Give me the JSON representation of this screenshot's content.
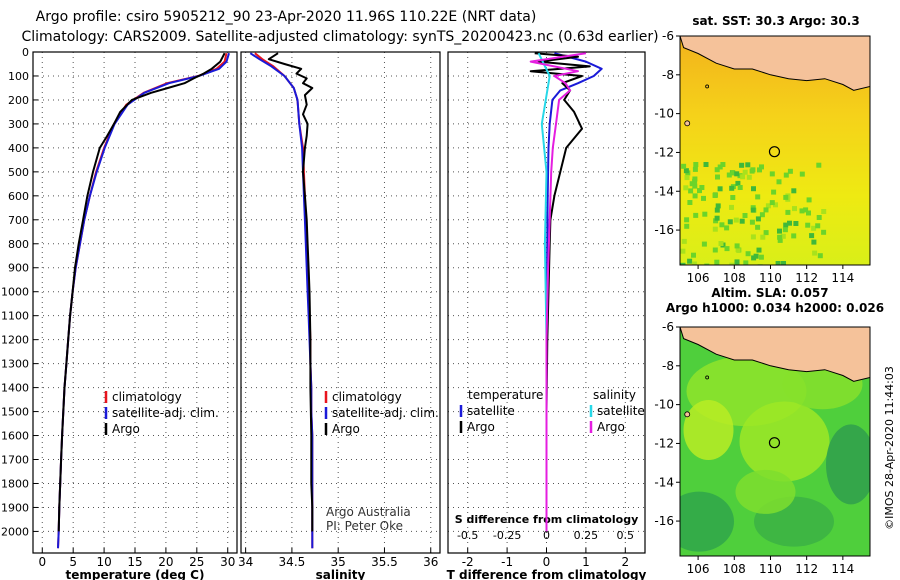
{
  "titles": {
    "line1": "Argo profile: csiro 5905212_90 23-Apr-2020 11.96S 110.22E (NRT data)",
    "line2": "Climatology: CARS2009. Satellite-adjusted climatology: synTS_20200423.nc (0.63d earlier)"
  },
  "colors": {
    "climatology": "#e8141e",
    "satellite": "#1a1ad8",
    "argo": "#000000",
    "sat_salinity": "#27d8e8",
    "argo_salinity": "#e51ee0"
  },
  "chart_data": [
    {
      "type": "line",
      "id": "temperature",
      "xlabel": "temperature (deg C)",
      "xlim": [
        -1.5,
        31.5
      ],
      "ylim": [
        2090,
        0
      ],
      "xticks": [
        0,
        5,
        10,
        15,
        20,
        25,
        30
      ],
      "xticklabels": [
        "0",
        "5",
        "10",
        "15",
        "20",
        "25",
        "30"
      ],
      "yticks": [
        0,
        100,
        200,
        300,
        400,
        500,
        600,
        700,
        800,
        900,
        1000,
        1100,
        1200,
        1300,
        1400,
        1500,
        1600,
        1700,
        1800,
        1900,
        2000
      ],
      "yticklabels": [
        "0",
        "100",
        "200",
        "300",
        "400",
        "500",
        "600",
        "700",
        "800",
        "900",
        "1000",
        "1100",
        "1200",
        "1300",
        "1400",
        "1500",
        "1600",
        "1700",
        "1800",
        "1900",
        "2000"
      ],
      "legend": [
        "climatology",
        "satellite-adj. clim.",
        "Argo"
      ],
      "series": [
        {
          "name": "climatology",
          "color": "#e8141e",
          "x": [
            29.8,
            29.5,
            28.2,
            25.2,
            20.2,
            16.4,
            13.6,
            11.6,
            10.0,
            8.7,
            7.7,
            6.8,
            6.1,
            5.4,
            4.9,
            4.5,
            4.2,
            3.9,
            3.6,
            3.4,
            3.2,
            3.05,
            2.9,
            2.75,
            2.65,
            2.55
          ],
          "y": [
            5,
            40,
            70,
            100,
            130,
            170,
            220,
            300,
            400,
            500,
            600,
            700,
            800,
            900,
            1000,
            1100,
            1200,
            1300,
            1400,
            1500,
            1600,
            1700,
            1800,
            1900,
            2000,
            2070
          ]
        },
        {
          "name": "satellite-adj. clim.",
          "color": "#1a1ad8",
          "x": [
            30.2,
            29.8,
            28.6,
            25.3,
            20.5,
            16.5,
            13.8,
            11.7,
            10.1,
            8.8,
            7.7,
            6.8,
            6.1,
            5.4,
            4.9,
            4.5,
            4.2,
            3.9,
            3.6,
            3.4,
            3.2,
            3.05,
            2.9,
            2.75,
            2.65,
            2.55
          ],
          "y": [
            5,
            40,
            70,
            100,
            130,
            170,
            220,
            300,
            400,
            500,
            600,
            700,
            800,
            900,
            1000,
            1100,
            1200,
            1300,
            1400,
            1500,
            1600,
            1700,
            1800,
            1900,
            2000,
            2070
          ]
        },
        {
          "name": "Argo",
          "color": "#000000",
          "x": [
            29.5,
            28.8,
            27.4,
            26.1,
            24.5,
            23.0,
            20.3,
            17.6,
            14.5,
            12.6,
            11.6,
            10.5,
            9.3,
            8.2,
            7.3,
            6.6,
            5.9,
            5.3,
            4.9,
            4.5,
            4.2,
            3.9,
            3.6,
            3.4,
            3.2,
            3.05,
            2.9,
            2.75,
            2.65
          ],
          "y": [
            5,
            40,
            70,
            90,
            110,
            130,
            150,
            170,
            200,
            250,
            300,
            350,
            400,
            500,
            600,
            700,
            800,
            900,
            1000,
            1100,
            1200,
            1300,
            1400,
            1500,
            1600,
            1700,
            1800,
            1900,
            2000
          ]
        }
      ]
    },
    {
      "type": "line",
      "id": "salinity",
      "xlabel": "salinity",
      "xlim": [
        33.95,
        36.1
      ],
      "ylim": [
        2090,
        0
      ],
      "xticks": [
        34,
        34.5,
        35,
        35.5,
        36
      ],
      "xticklabels": [
        "34",
        "34.5",
        "35",
        "35.5",
        "36"
      ],
      "legend": [
        "climatology",
        "satellite-adj. clim.",
        "Argo"
      ],
      "annotation": [
        "Argo Australia",
        "PI: Peter Oke"
      ],
      "series": [
        {
          "name": "climatology",
          "color": "#e8141e",
          "x": [
            34.1,
            34.18,
            34.3,
            34.42,
            34.52,
            34.56,
            34.58,
            34.62,
            34.63,
            34.64,
            34.65,
            34.66,
            34.67,
            34.68,
            34.69,
            34.7,
            34.7,
            34.71,
            34.71,
            34.72,
            34.72,
            34.72,
            34.72
          ],
          "y": [
            5,
            30,
            60,
            100,
            150,
            200,
            300,
            400,
            500,
            600,
            700,
            800,
            900,
            1000,
            1100,
            1200,
            1300,
            1400,
            1500,
            1600,
            1800,
            1900,
            2070
          ]
        },
        {
          "name": "satellite-adj. clim.",
          "color": "#1a1ad8",
          "x": [
            34.05,
            34.15,
            34.28,
            34.42,
            34.52,
            34.56,
            34.58,
            34.61,
            34.62,
            34.63,
            34.64,
            34.65,
            34.66,
            34.67,
            34.68,
            34.69,
            34.7,
            34.71,
            34.71,
            34.72,
            34.72,
            34.72,
            34.72
          ],
          "y": [
            5,
            30,
            60,
            100,
            150,
            200,
            300,
            400,
            500,
            600,
            700,
            800,
            900,
            1000,
            1100,
            1200,
            1300,
            1400,
            1500,
            1600,
            1800,
            1900,
            2070
          ]
        },
        {
          "name": "Argo",
          "color": "#000000",
          "x": [
            34.35,
            34.25,
            34.42,
            34.6,
            34.55,
            34.66,
            34.62,
            34.72,
            34.64,
            34.66,
            34.62,
            34.67,
            34.66,
            34.64,
            34.62,
            34.64,
            34.66,
            34.67,
            34.68,
            34.69,
            34.7,
            34.7,
            34.71,
            34.71,
            34.72,
            34.72
          ],
          "y": [
            5,
            30,
            50,
            70,
            90,
            110,
            130,
            150,
            180,
            220,
            260,
            300,
            350,
            400,
            500,
            600,
            700,
            800,
            900,
            1000,
            1200,
            1400,
            1600,
            1800,
            1900,
            2000
          ]
        }
      ]
    },
    {
      "type": "line",
      "id": "difference",
      "xlabel": "T difference from climatology",
      "xlabel_top": "S difference from climatology",
      "xlim": [
        -2.5,
        2.5
      ],
      "ylim": [
        2090,
        0
      ],
      "xticks": [
        -2,
        -1,
        0,
        1,
        2
      ],
      "xticklabels": [
        "-2",
        "-1",
        "0",
        "1",
        "2"
      ],
      "xticks_top": [
        -0.5,
        -0.25,
        0,
        0.25,
        0.5
      ],
      "xticklabels_top": [
        "-0.5",
        "-0.25",
        "0",
        "0.25",
        "0.5"
      ],
      "legend": {
        "temperature_header": "temperature",
        "salinity_header": "salinity",
        "items": [
          "satellite",
          "Argo",
          "satellite",
          "Argo"
        ]
      },
      "series": [
        {
          "name": "T satellite",
          "color": "#1a1ad8",
          "x": [
            0.2,
            1.0,
            1.4,
            1.2,
            0.8,
            0.35,
            0.15,
            0.08,
            0.05,
            0.03,
            0.02,
            0.01,
            0,
            0,
            0
          ],
          "y": [
            5,
            40,
            70,
            100,
            130,
            160,
            200,
            300,
            400,
            600,
            800,
            1000,
            1400,
            1800,
            2000
          ]
        },
        {
          "name": "T Argo",
          "color": "#000000",
          "x": [
            -0.3,
            0.8,
            -0.2,
            1.1,
            -0.4,
            0.9,
            0.4,
            0.6,
            0.45,
            0.7,
            0.9,
            0.5,
            0.35,
            0.2,
            0.1,
            0.08,
            0.05,
            0.02,
            0,
            0,
            0
          ],
          "y": [
            5,
            20,
            40,
            60,
            80,
            100,
            130,
            160,
            200,
            250,
            320,
            400,
            500,
            600,
            700,
            800,
            1000,
            1200,
            1500,
            1800,
            2000
          ]
        },
        {
          "name": "S satellite",
          "color": "#27d8e8",
          "x": [
            -0.05,
            0.02,
            -0.03,
            0.0,
            -0.01,
            0.0,
            0.0
          ],
          "y": [
            5,
            100,
            300,
            500,
            800,
            1200,
            1600
          ]
        },
        {
          "name": "S Argo",
          "color": "#e51ee0",
          "x": [
            0.25,
            -0.1,
            0.2,
            0.05,
            0.12,
            0.15,
            0.08,
            0.06,
            0.04,
            0.03,
            0.02,
            0.01,
            0.0,
            0.0,
            0.0
          ],
          "y": [
            5,
            40,
            80,
            100,
            130,
            160,
            200,
            300,
            400,
            500,
            700,
            900,
            1200,
            1600,
            2000
          ]
        }
      ]
    }
  ],
  "maps": [
    {
      "id": "sst-map",
      "title": "sat. SST: 30.3 Argo: 30.3",
      "xticks": [
        106,
        108,
        110,
        112,
        114
      ],
      "xticklabels": [
        "106",
        "108",
        "110",
        "112",
        "114"
      ],
      "yticks": [
        -6,
        -8,
        -10,
        -12,
        -14,
        -16
      ],
      "yticklabels": [
        "-6",
        "-8",
        "-10",
        "-12",
        "-14",
        "-16"
      ],
      "profile_lon": 110.22,
      "profile_lat": -11.96
    },
    {
      "id": "sla-map",
      "title": "Altim. SLA: 0.057",
      "subtitle": "Argo h1000: 0.034 h2000: 0.026",
      "xticks": [
        106,
        108,
        110,
        112,
        114
      ],
      "xticklabels": [
        "106",
        "108",
        "110",
        "112",
        "114"
      ],
      "yticks": [
        -6,
        -8,
        -10,
        -12,
        -14,
        -16
      ],
      "yticklabels": [
        "-6",
        "-8",
        "-10",
        "-12",
        "-14",
        "-16"
      ],
      "profile_lon": 110.22,
      "profile_lat": -11.96
    }
  ],
  "credit": "©IMOS 28-Apr-2020 11:44:03"
}
